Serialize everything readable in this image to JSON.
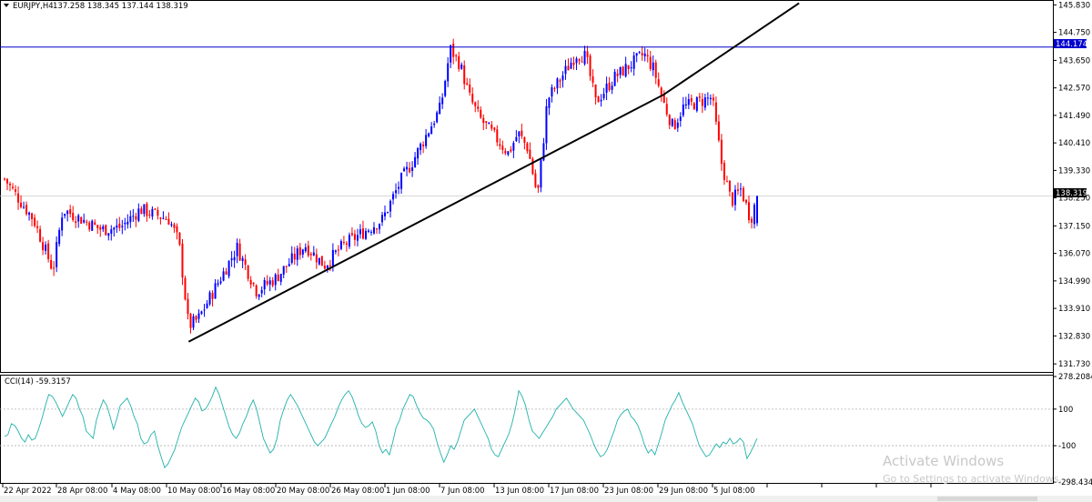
{
  "header": {
    "symbol_timeframe": "EURJPY,H4",
    "ohlc": "137.258 138.345 137.144 138.319",
    "indicator": "CCI(14) -59.3157"
  },
  "colors": {
    "bull": "#0000ff",
    "bear": "#ff0000",
    "cci": "#20b2aa",
    "hline": "#0000cd",
    "trend": "#000000",
    "grid": "#c0c0c0"
  },
  "price_axis": {
    "ticks": [
      "145.830",
      "144.750",
      "143.650",
      "142.570",
      "141.490",
      "140.410",
      "139.330",
      "138.250",
      "137.150",
      "136.070",
      "134.990",
      "133.910",
      "132.830",
      "131.730"
    ],
    "hline_label": "144.174",
    "current_label": "138.319"
  },
  "cci_axis": {
    "ticks": [
      "278.2084",
      "100",
      "0",
      "-100",
      "-298.4346"
    ]
  },
  "time_axis": {
    "labels": [
      "22 Apr 2022",
      "28 Apr 08:00",
      "4 May 08:00",
      "10 May 08:00",
      "16 May 08:00",
      "20 May 08:00",
      "26 May 08:00",
      "1 Jun 08:00",
      "7 Jun 08:00",
      "13 Jun 08:00",
      "17 Jun 08:00",
      "23 Jun 08:00",
      "29 Jun 08:00",
      "5 Jul 08:00"
    ]
  },
  "watermark": {
    "line1": "Activate Windows",
    "line2": "Go to Settings to activate Windows."
  },
  "chart_data": [
    {
      "type": "candlestick",
      "title": "EURJPY,H4",
      "ylim": [
        131.45,
        145.95
      ],
      "horizontal_line": 144.174,
      "current_price": 138.319,
      "last_candle": {
        "open": 137.258,
        "high": 138.345,
        "low": 137.144,
        "close": 138.319
      },
      "trendline": [
        {
          "date": "11 May 2022",
          "price": 132.6
        },
        {
          "date": "29 Jun 2022",
          "price": 142.3
        },
        {
          "date": "13 Jul 2022",
          "price": 145.9
        }
      ],
      "close_path": [
        {
          "date": "22 Apr 2022",
          "close": 139.0
        },
        {
          "date": "25 Apr 2022",
          "close": 137.4
        },
        {
          "date": "27 Apr 2022",
          "close": 135.4
        },
        {
          "date": "28 Apr 2022",
          "close": 137.8
        },
        {
          "date": "2 May 2022",
          "close": 137.0
        },
        {
          "date": "4 May 2022",
          "close": 137.1
        },
        {
          "date": "6 May 2022",
          "close": 137.8
        },
        {
          "date": "9 May 2022",
          "close": 137.4
        },
        {
          "date": "10 May 2022",
          "close": 136.5
        },
        {
          "date": "11 May 2022",
          "close": 133.2
        },
        {
          "date": "12 May 2022",
          "close": 133.5
        },
        {
          "date": "16 May 2022",
          "close": 136.3
        },
        {
          "date": "18 May 2022",
          "close": 134.6
        },
        {
          "date": "20 May 2022",
          "close": 135.1
        },
        {
          "date": "23 May 2022",
          "close": 136.4
        },
        {
          "date": "25 May 2022",
          "close": 135.6
        },
        {
          "date": "27 May 2022",
          "close": 136.4
        },
        {
          "date": "31 May 2022",
          "close": 137.4
        },
        {
          "date": "2 Jun 2022",
          "close": 139.0
        },
        {
          "date": "3 Jun 2022",
          "close": 139.6
        },
        {
          "date": "6 Jun 2022",
          "close": 141.8
        },
        {
          "date": "7 Jun 2022",
          "close": 144.1
        },
        {
          "date": "8 Jun 2022",
          "close": 143.5
        },
        {
          "date": "9 Jun 2022",
          "close": 142.2
        },
        {
          "date": "10 Jun 2022",
          "close": 141.4
        },
        {
          "date": "13 Jun 2022",
          "close": 140.0
        },
        {
          "date": "14 Jun 2022",
          "close": 140.8
        },
        {
          "date": "15 Jun 2022",
          "close": 140.2
        },
        {
          "date": "16 Jun 2022",
          "close": 138.3
        },
        {
          "date": "16 Jun 2022 20:00",
          "close": 141.3
        },
        {
          "date": "17 Jun 2022",
          "close": 142.1
        },
        {
          "date": "20 Jun 2022",
          "close": 143.9
        },
        {
          "date": "21 Jun 2022",
          "close": 143.8
        },
        {
          "date": "22 Jun 2022",
          "close": 142.0
        },
        {
          "date": "23 Jun 2022",
          "close": 142.5
        },
        {
          "date": "24 Jun 2022",
          "close": 143.0
        },
        {
          "date": "27 Jun 2022",
          "close": 143.9
        },
        {
          "date": "28 Jun 2022",
          "close": 143.3
        },
        {
          "date": "29 Jun 2022",
          "close": 142.0
        },
        {
          "date": "30 Jun 2022",
          "close": 141.0
        },
        {
          "date": "1 Jul 2022",
          "close": 141.8
        },
        {
          "date": "4 Jul 2022",
          "close": 142.2
        },
        {
          "date": "5 Jul 2022",
          "close": 139.6
        },
        {
          "date": "6 Jul 2022",
          "close": 138.1
        },
        {
          "date": "7 Jul 2022",
          "close": 138.6
        },
        {
          "date": "8 Jul 2022",
          "close": 137.4
        },
        {
          "date": "8 Jul 2022 16:00",
          "close": 138.319
        }
      ]
    },
    {
      "type": "line",
      "title": "CCI(14)",
      "value": -59.3157,
      "ylim": [
        -298.4346,
        278.2084
      ],
      "levels": [
        100,
        0,
        -100
      ],
      "y": [
        -50,
        -40,
        20,
        10,
        -20,
        -60,
        -80,
        -40,
        -70,
        -60,
        -10,
        50,
        120,
        180,
        170,
        140,
        100,
        60,
        100,
        140,
        180,
        160,
        100,
        60,
        -20,
        -40,
        -60,
        40,
        100,
        150,
        120,
        60,
        -10,
        50,
        120,
        140,
        160,
        120,
        60,
        20,
        -60,
        -90,
        -80,
        -40,
        -20,
        -100,
        -160,
        -220,
        -200,
        -160,
        -120,
        -60,
        0,
        40,
        80,
        120,
        160,
        140,
        90,
        100,
        130,
        170,
        220,
        180,
        120,
        60,
        0,
        -40,
        -60,
        -30,
        20,
        60,
        110,
        150,
        100,
        20,
        -60,
        -100,
        -140,
        -120,
        -60,
        40,
        100,
        150,
        180,
        150,
        120,
        80,
        40,
        0,
        -40,
        -80,
        -100,
        -80,
        -60,
        -20,
        20,
        60,
        110,
        150,
        180,
        200,
        170,
        120,
        60,
        20,
        0,
        10,
        30,
        -20,
        -100,
        -140,
        -120,
        -150,
        -80,
        0,
        40,
        100,
        140,
        180,
        170,
        120,
        80,
        50,
        40,
        20,
        -10,
        -80,
        -140,
        -190,
        -150,
        -100,
        -120,
        -80,
        -20,
        40,
        60,
        80,
        100,
        60,
        20,
        -20,
        -60,
        -120,
        -150,
        -160,
        -120,
        -80,
        -40,
        20,
        100,
        200,
        170,
        120,
        40,
        -20,
        -40,
        -60,
        -30,
        0,
        30,
        60,
        100,
        120,
        140,
        160,
        130,
        100,
        80,
        60,
        40,
        0,
        -40,
        -90,
        -130,
        -160,
        -150,
        -120,
        -70,
        -20,
        40,
        70,
        90,
        100,
        60,
        40,
        10,
        -40,
        -100,
        -140,
        -120,
        -150,
        -90,
        -30,
        40,
        80,
        120,
        150,
        190,
        140,
        100,
        60,
        20,
        -40,
        -100,
        -130,
        -160,
        -150,
        -120,
        -90,
        -110,
        -80,
        -90,
        -60,
        -90,
        -80,
        -60,
        -80,
        -170,
        -140,
        -100,
        -60
      ]
    }
  ]
}
